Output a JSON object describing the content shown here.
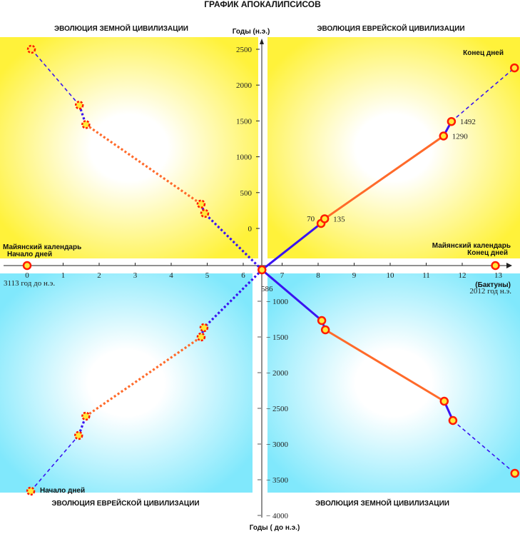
{
  "title": "ГРАФИК  АПОКАЛИПСИСОВ",
  "panels": {
    "top_left": "ЭВОЛЮЦИЯ ЗЕМНОЙ ЦИВИЛИЗАЦИИ",
    "top_right": "ЭВОЛЮЦИЯ ЕВРЕЙСКОЙ  ЦИВИЛИЗАЦИИ",
    "bottom_left": "ЭВОЛЮЦИЯ ЕВРЕЙСКОЙ  ЦИВИЛИЗАЦИИ",
    "bottom_right": "ЭВОЛЮЦИЯ ЗЕМНОЙ ЦИВИЛИЗАЦИИ"
  },
  "labels": {
    "y_top": "Годы (н.э.)",
    "y_bottom": "Годы ( до н.э.)",
    "x_axis": "(Бактуны)",
    "maya_left_1": "Майянский календарь",
    "maya_left_2": "Начало дней",
    "maya_right_1": "Майянский календарь",
    "maya_right_2": "Конец дней",
    "end_days": "Конец дней",
    "start_days": "Начало дней",
    "start_year": "3113 год  до н.э.",
    "end_year": "2012 год   н.э.",
    "center_year": "586"
  },
  "chart_data": {
    "type": "line",
    "title": "ГРАФИК  АПОКАЛИПСИСОВ",
    "xlabel": "(Бактуны)",
    "x_ticks": [
      0,
      1,
      2,
      3,
      4,
      5,
      6,
      7,
      8,
      9,
      10,
      11,
      12,
      13
    ],
    "y_ticks_top": [
      0,
      500,
      1000,
      1500,
      2000,
      2500
    ],
    "y_ticks_bottom": [
      1000,
      1500,
      2000,
      2500,
      3000,
      3500,
      4000
    ],
    "axis_points": [
      [
        0,
        0
      ],
      [
        6.52,
        0
      ],
      [
        13,
        0
      ]
    ],
    "series": [
      {
        "name": "top-right",
        "point_labels": [
          "70",
          "135",
          "1290",
          "1492",
          ""
        ],
        "points": [
          [
            8.16,
            70
          ],
          [
            8.26,
            135
          ],
          [
            11.56,
            1290
          ],
          [
            11.78,
            1492
          ],
          [
            13.53,
            2240
          ]
        ],
        "segments": [
          "blue-dashed",
          "orange",
          "blue",
          "blue-dashed"
        ],
        "origin_style": "blue"
      },
      {
        "name": "top-left",
        "points": [
          [
            0.12,
            2500
          ],
          [
            1.45,
            1720
          ],
          [
            1.63,
            1450
          ],
          [
            4.83,
            340
          ],
          [
            4.93,
            210
          ]
        ],
        "segments": [
          "blue-dashed",
          "blue-dotted",
          "orange-dotted",
          "blue-dotted"
        ],
        "origin_style": "blue-dotted",
        "dashed_markers": true
      },
      {
        "name": "bottom-left",
        "points": [
          [
            0.1,
            -3660
          ],
          [
            1.43,
            -2880
          ],
          [
            1.63,
            -2610
          ],
          [
            4.83,
            -1500
          ],
          [
            4.91,
            -1370
          ]
        ],
        "segments": [
          "blue-dashed",
          "blue-dotted",
          "orange-dotted",
          "blue-dotted"
        ],
        "origin_style": "blue-dotted",
        "dashed_markers": true
      },
      {
        "name": "bottom-right",
        "points": [
          [
            8.18,
            -1270
          ],
          [
            8.28,
            -1400
          ],
          [
            11.58,
            -2400
          ],
          [
            11.82,
            -2670
          ],
          [
            13.54,
            -3410
          ]
        ],
        "segments": [
          "blue",
          "orange",
          "blue",
          "blue-dashed"
        ],
        "origin_style": "blue"
      }
    ],
    "colors": {
      "blue": "#3a14f0",
      "orange": "#ff6a2a",
      "marker_ring": "#ff1a00",
      "marker_fill": "#ffe83a",
      "yellow": "#fff23a",
      "cyan": "#80e8fc"
    }
  }
}
